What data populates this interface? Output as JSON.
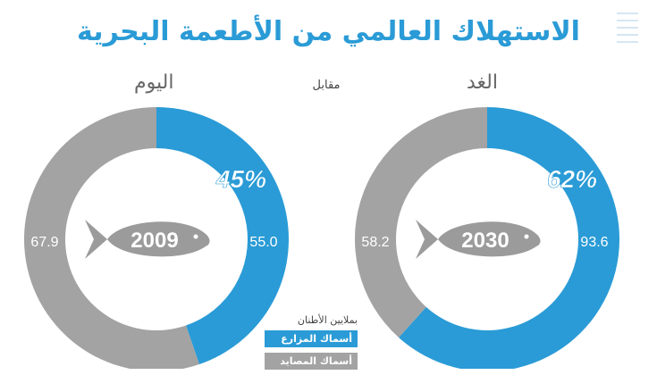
{
  "title": "الاستهلاك العالمي من الأطعمة البحرية",
  "versus_label": "مقابل",
  "legend": {
    "title": "بملايين الأطنان",
    "farm_label": "أسماك المزارع",
    "wild_label": "أسماك المصايد"
  },
  "colors": {
    "farm": "#2a9bd6",
    "wild": "#a3a3a3",
    "title": "#2a9bd6",
    "fish": "#9b9b9b"
  },
  "chart_data": [
    {
      "type": "pie",
      "heading": "اليوم",
      "year": "2009",
      "percent_label": "45%",
      "series": [
        {
          "name": "أسماك المزارع",
          "value": 55.0
        },
        {
          "name": "أسماك المصايد",
          "value": 67.9
        }
      ],
      "value_labels": [
        "55.0",
        "67.9"
      ]
    },
    {
      "type": "pie",
      "heading": "الغد",
      "year": "2030",
      "percent_label": "62%",
      "series": [
        {
          "name": "أسماك المزارع",
          "value": 93.6
        },
        {
          "name": "أسماك المصايد",
          "value": 58.2
        }
      ],
      "value_labels": [
        "93.6",
        "58.2"
      ]
    }
  ]
}
